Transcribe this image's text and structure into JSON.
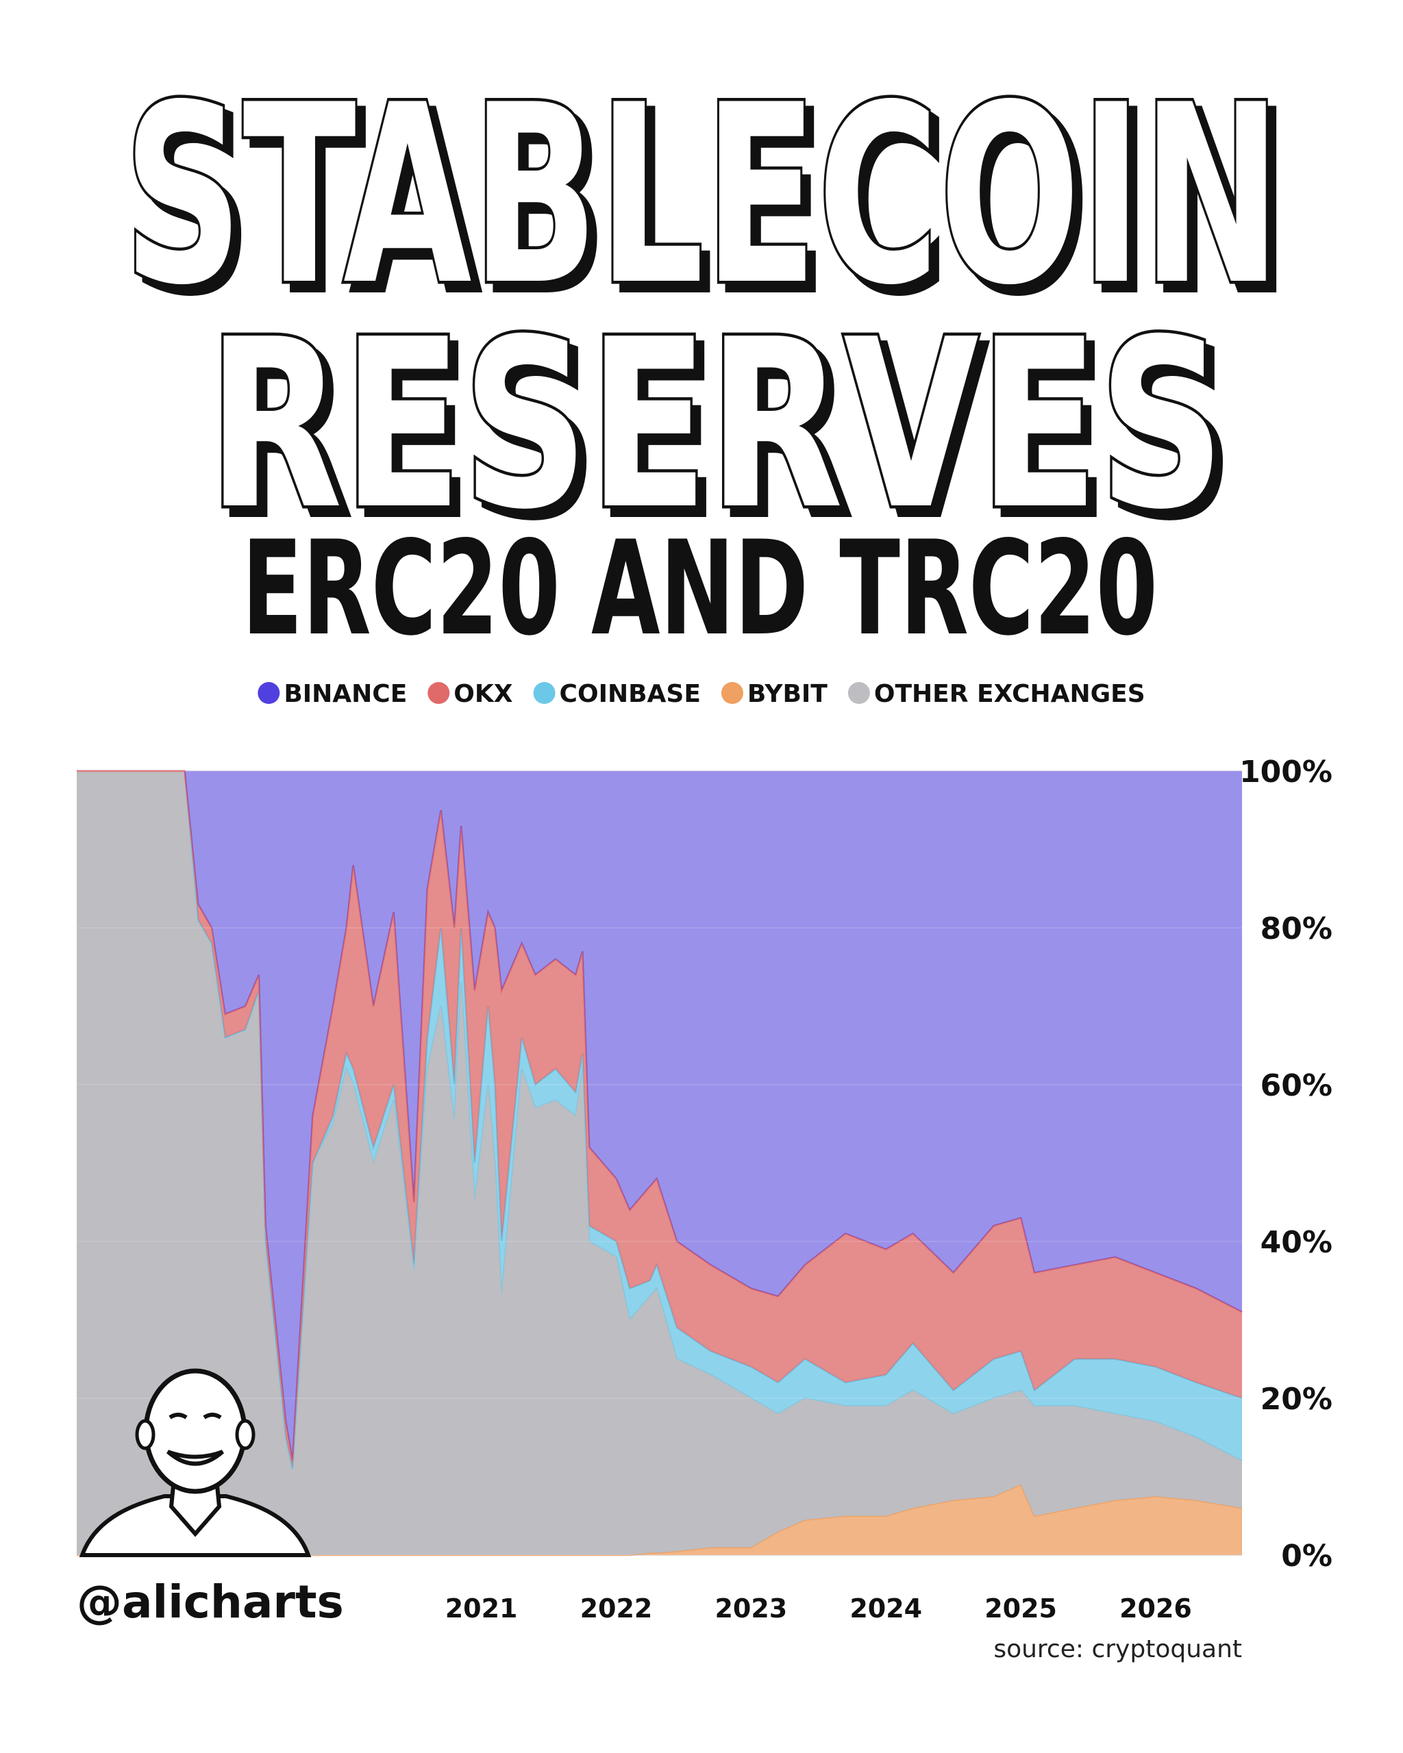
{
  "chart_data": {
    "type": "stacked_area_percent",
    "title": [
      "STABLECOIN",
      "RESERVES"
    ],
    "subtitle": "ERC20 AND TRC20",
    "handle": "@alicharts",
    "source": "source: cryptoquant",
    "x": [
      2018.0,
      2018.8,
      2018.9,
      2019.0,
      2019.1,
      2019.25,
      2019.35,
      2019.4,
      2019.55,
      2019.6,
      2019.75,
      2019.9,
      2020.0,
      2020.05,
      2020.2,
      2020.35,
      2020.5,
      2020.6,
      2020.7,
      2020.8,
      2020.85,
      2020.95,
      2021.05,
      2021.1,
      2021.15,
      2021.3,
      2021.4,
      2021.55,
      2021.7,
      2021.75,
      2021.8,
      2022.0,
      2022.1,
      2022.25,
      2022.3,
      2022.45,
      2022.7,
      2023.0,
      2023.2,
      2023.4,
      2023.7,
      2024.0,
      2024.2,
      2024.5,
      2024.8,
      2025.0,
      2025.1,
      2025.4,
      2025.7,
      2026.0,
      2026.3,
      2026.64
    ],
    "series": [
      {
        "name": "BINANCE",
        "color": "#5040e0",
        "values": [
          0,
          0,
          17,
          20,
          31,
          30,
          26,
          58,
          83,
          88,
          44,
          30,
          20,
          12,
          30,
          18,
          55,
          15,
          5,
          20,
          7,
          28,
          18,
          20,
          28,
          22,
          26,
          24,
          26,
          23,
          48,
          52,
          56,
          53,
          52,
          60,
          63,
          66,
          67,
          63,
          59,
          61,
          59,
          64,
          58,
          57,
          64,
          63,
          62,
          64,
          66,
          69
        ]
      },
      {
        "name": "OKX",
        "color": "#e06a6a",
        "values": [
          0,
          0,
          2,
          2,
          3,
          3,
          2,
          2,
          2,
          1,
          6,
          14,
          16,
          26,
          18,
          22,
          8,
          19,
          15,
          20,
          13,
          22,
          12,
          20,
          32,
          12,
          14,
          14,
          15,
          13,
          10,
          8,
          10,
          12,
          11,
          11,
          11,
          10,
          11,
          12,
          19,
          16,
          14,
          15,
          17,
          17,
          15,
          12,
          13,
          12,
          12,
          11
        ]
      },
      {
        "name": "COINBASE",
        "color": "#6cc8e8",
        "values": [
          0,
          0,
          0,
          0,
          0,
          0,
          0,
          0,
          0,
          0,
          0,
          1,
          2,
          2,
          2,
          2,
          1,
          4,
          10,
          5,
          7,
          5,
          10,
          10,
          7,
          4,
          3,
          4,
          3,
          2,
          2,
          2,
          4,
          2,
          3,
          4,
          3,
          4,
          4,
          5,
          3,
          4,
          6,
          3,
          5,
          5,
          2,
          6,
          7,
          7,
          7,
          8
        ]
      },
      {
        "name": "BYBIT",
        "color": "#f0a060",
        "values": [
          0,
          0,
          0,
          0,
          0,
          0,
          0,
          0,
          0,
          0,
          0,
          0,
          0,
          0,
          0,
          0,
          0,
          0,
          0,
          0,
          0,
          0,
          0,
          0,
          0,
          0,
          0,
          0,
          0,
          0,
          0,
          0,
          0,
          0.3,
          0.3,
          0.5,
          1,
          1,
          3,
          4.5,
          5,
          5,
          6,
          7,
          7.5,
          9,
          5,
          6,
          7,
          7.5,
          7,
          6
        ]
      },
      {
        "name": "OTHER EXCHANGES",
        "color": "#bdbdc2",
        "values": [
          100,
          100,
          81,
          78,
          66,
          67,
          72,
          40,
          15,
          11,
          50,
          55,
          62,
          60,
          50,
          58,
          36,
          62,
          70,
          55,
          73,
          45,
          60,
          50,
          33,
          62,
          57,
          58,
          56,
          62,
          40,
          38,
          30,
          32.7,
          33.7,
          24.5,
          22,
          19,
          15,
          15.5,
          14,
          14,
          15,
          11,
          12.5,
          12,
          14,
          13,
          11,
          9.5,
          8,
          6
        ]
      }
    ],
    "xlim": [
      2018.0,
      2026.64
    ],
    "xticks": [
      2021,
      2022,
      2023,
      2024,
      2025,
      2026
    ],
    "ylim": [
      0,
      100
    ],
    "yticks": [
      {
        "value": 0,
        "label": "0%"
      },
      {
        "value": 20,
        "label": "20%"
      },
      {
        "value": 40,
        "label": "40%"
      },
      {
        "value": 60,
        "label": "60%"
      },
      {
        "value": 80,
        "label": "80%"
      },
      {
        "value": 100,
        "label": "100%"
      }
    ],
    "grid": true
  }
}
